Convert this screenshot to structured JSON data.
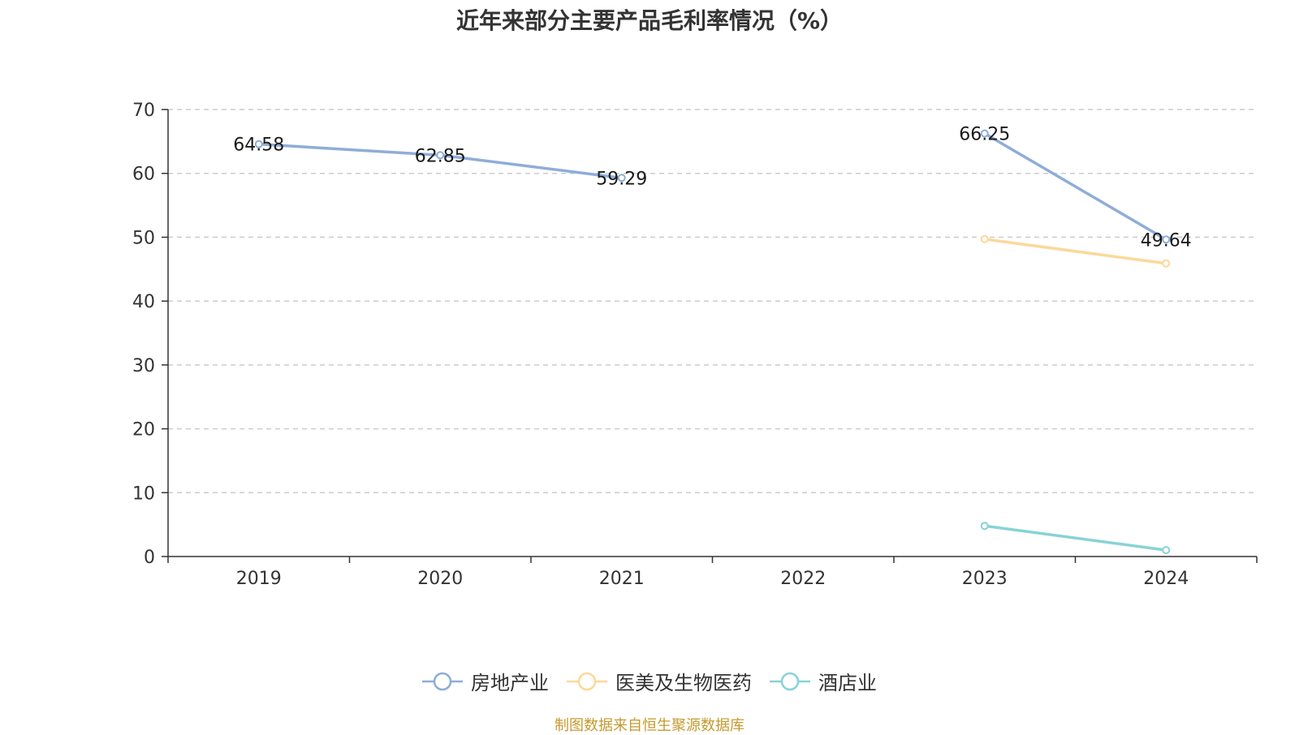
{
  "chart_data": {
    "type": "line",
    "title": "近年来部分主要产品毛利率情况（%）",
    "categories": [
      "2019",
      "2020",
      "2021",
      "2022",
      "2023",
      "2024"
    ],
    "ylim": [
      0,
      70
    ],
    "yticks": [
      0,
      10,
      20,
      30,
      40,
      50,
      60,
      70
    ],
    "grid": true,
    "legend_position": "bottom",
    "series": [
      {
        "name": "房地产业",
        "color": "#8eadd8",
        "values": [
          64.58,
          62.85,
          59.29,
          null,
          66.25,
          49.64
        ],
        "labels": [
          "64.58",
          "62.85",
          "59.29",
          null,
          "66.25",
          "49.64"
        ]
      },
      {
        "name": "医美及生物医药",
        "color": "#fcd89a",
        "values": [
          null,
          null,
          null,
          null,
          49.7,
          45.9
        ],
        "labels": [
          null,
          null,
          null,
          null,
          null,
          null
        ]
      },
      {
        "name": "酒店业",
        "color": "#87d3d6",
        "values": [
          null,
          null,
          null,
          null,
          4.8,
          1.0
        ],
        "labels": [
          null,
          null,
          null,
          null,
          null,
          null
        ]
      }
    ]
  },
  "source_text": "制图数据来自恒生聚源数据库"
}
